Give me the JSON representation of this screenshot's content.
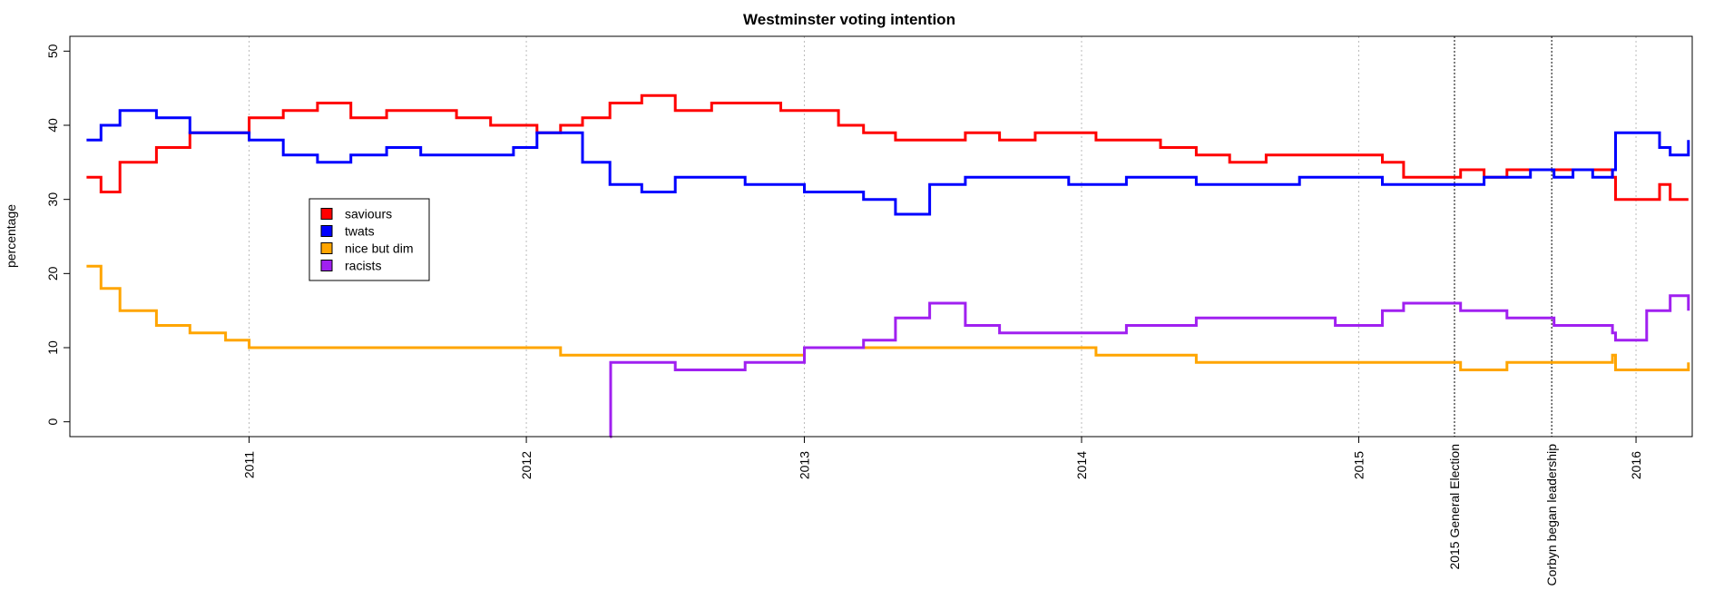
{
  "chart_data": {
    "type": "line",
    "title": "Westminster voting intention",
    "xlabel": "",
    "ylabel": "percentage",
    "x_type": "date",
    "xlim": [
      "2010-05-10",
      "2016-03-15"
    ],
    "ylim": [
      -2,
      52
    ],
    "yticks": [
      0,
      10,
      20,
      30,
      40,
      50
    ],
    "xticks": [
      {
        "date": "2011-01-01",
        "label": "2011"
      },
      {
        "date": "2012-01-01",
        "label": "2012"
      },
      {
        "date": "2013-01-01",
        "label": "2013"
      },
      {
        "date": "2014-01-01",
        "label": "2014"
      },
      {
        "date": "2015-01-01",
        "label": "2015"
      },
      {
        "date": "2016-01-01",
        "label": "2016"
      }
    ],
    "grid": "vertical dotted at year ticks",
    "events": [
      {
        "date": "2015-05-07",
        "label": "2015 General Election"
      },
      {
        "date": "2015-09-12",
        "label": "Corbyn began leadership"
      }
    ],
    "legend": {
      "position": "left",
      "entries": [
        "saviours",
        "twats",
        "nice but dim",
        "racists"
      ]
    },
    "series": [
      {
        "name": "saviours",
        "color": "#ff0000",
        "points": [
          [
            "2010-06-01",
            33
          ],
          [
            "2010-06-20",
            31
          ],
          [
            "2010-07-15",
            35
          ],
          [
            "2010-09-01",
            37
          ],
          [
            "2010-10-15",
            39
          ],
          [
            "2010-12-01",
            39
          ],
          [
            "2011-01-01",
            41
          ],
          [
            "2011-02-15",
            42
          ],
          [
            "2011-04-01",
            43
          ],
          [
            "2011-05-15",
            41
          ],
          [
            "2011-07-01",
            42
          ],
          [
            "2011-08-15",
            42
          ],
          [
            "2011-10-01",
            41
          ],
          [
            "2011-11-15",
            40
          ],
          [
            "2011-12-15",
            40
          ],
          [
            "2012-01-15",
            39
          ],
          [
            "2012-02-15",
            40
          ],
          [
            "2012-03-15",
            41
          ],
          [
            "2012-04-20",
            43
          ],
          [
            "2012-06-01",
            44
          ],
          [
            "2012-07-15",
            42
          ],
          [
            "2012-09-01",
            43
          ],
          [
            "2012-10-15",
            43
          ],
          [
            "2012-12-01",
            42
          ],
          [
            "2013-01-01",
            42
          ],
          [
            "2013-02-15",
            40
          ],
          [
            "2013-03-20",
            39
          ],
          [
            "2013-05-01",
            38
          ],
          [
            "2013-06-15",
            38
          ],
          [
            "2013-08-01",
            39
          ],
          [
            "2013-09-15",
            38
          ],
          [
            "2013-11-01",
            39
          ],
          [
            "2013-12-15",
            39
          ],
          [
            "2014-01-20",
            38
          ],
          [
            "2014-03-01",
            38
          ],
          [
            "2014-04-15",
            37
          ],
          [
            "2014-06-01",
            36
          ],
          [
            "2014-07-15",
            35
          ],
          [
            "2014-09-01",
            36
          ],
          [
            "2014-10-15",
            36
          ],
          [
            "2014-12-01",
            36
          ],
          [
            "2015-01-01",
            36
          ],
          [
            "2015-02-01",
            35
          ],
          [
            "2015-03-01",
            33
          ],
          [
            "2015-04-01",
            33
          ],
          [
            "2015-05-01",
            33
          ],
          [
            "2015-05-15",
            34
          ],
          [
            "2015-06-15",
            33
          ],
          [
            "2015-07-15",
            34
          ],
          [
            "2015-08-15",
            34
          ],
          [
            "2015-09-15",
            34
          ],
          [
            "2015-10-10",
            34
          ],
          [
            "2015-11-05",
            34
          ],
          [
            "2015-12-01",
            33
          ],
          [
            "2015-12-05",
            30
          ],
          [
            "2016-01-15",
            30
          ],
          [
            "2016-02-01",
            32
          ],
          [
            "2016-02-15",
            30
          ],
          [
            "2016-03-10",
            30
          ]
        ]
      },
      {
        "name": "twats",
        "color": "#0000ff",
        "points": [
          [
            "2010-06-01",
            38
          ],
          [
            "2010-06-20",
            40
          ],
          [
            "2010-07-15",
            42
          ],
          [
            "2010-09-01",
            41
          ],
          [
            "2010-10-15",
            39
          ],
          [
            "2010-12-01",
            39
          ],
          [
            "2011-01-01",
            38
          ],
          [
            "2011-02-15",
            36
          ],
          [
            "2011-04-01",
            35
          ],
          [
            "2011-05-15",
            36
          ],
          [
            "2011-07-01",
            37
          ],
          [
            "2011-08-15",
            36
          ],
          [
            "2011-10-01",
            36
          ],
          [
            "2011-11-15",
            36
          ],
          [
            "2011-12-15",
            37
          ],
          [
            "2012-01-15",
            39
          ],
          [
            "2012-02-15",
            39
          ],
          [
            "2012-03-15",
            35
          ],
          [
            "2012-04-20",
            32
          ],
          [
            "2012-06-01",
            31
          ],
          [
            "2012-07-15",
            33
          ],
          [
            "2012-09-01",
            33
          ],
          [
            "2012-10-15",
            32
          ],
          [
            "2012-12-01",
            32
          ],
          [
            "2013-01-01",
            31
          ],
          [
            "2013-02-15",
            31
          ],
          [
            "2013-03-20",
            30
          ],
          [
            "2013-05-01",
            28
          ],
          [
            "2013-06-15",
            32
          ],
          [
            "2013-08-01",
            33
          ],
          [
            "2013-09-15",
            33
          ],
          [
            "2013-11-01",
            33
          ],
          [
            "2013-12-15",
            32
          ],
          [
            "2014-01-20",
            32
          ],
          [
            "2014-03-01",
            33
          ],
          [
            "2014-04-15",
            33
          ],
          [
            "2014-06-01",
            32
          ],
          [
            "2014-07-15",
            32
          ],
          [
            "2014-09-01",
            32
          ],
          [
            "2014-10-15",
            33
          ],
          [
            "2014-12-01",
            33
          ],
          [
            "2015-01-01",
            33
          ],
          [
            "2015-02-01",
            32
          ],
          [
            "2015-03-01",
            32
          ],
          [
            "2015-04-01",
            32
          ],
          [
            "2015-05-01",
            32
          ],
          [
            "2015-05-15",
            32
          ],
          [
            "2015-06-15",
            33
          ],
          [
            "2015-07-15",
            33
          ],
          [
            "2015-08-15",
            34
          ],
          [
            "2015-09-15",
            33
          ],
          [
            "2015-10-10",
            34
          ],
          [
            "2015-11-05",
            33
          ],
          [
            "2015-12-01",
            34
          ],
          [
            "2015-12-05",
            39
          ],
          [
            "2016-01-15",
            39
          ],
          [
            "2016-02-01",
            37
          ],
          [
            "2016-02-15",
            36
          ],
          [
            "2016-03-10",
            38
          ]
        ]
      },
      {
        "name": "nice but dim",
        "color": "#ffa500",
        "points": [
          [
            "2010-06-01",
            21
          ],
          [
            "2010-06-20",
            18
          ],
          [
            "2010-07-15",
            15
          ],
          [
            "2010-09-01",
            13
          ],
          [
            "2010-10-15",
            12
          ],
          [
            "2010-12-01",
            11
          ],
          [
            "2011-01-01",
            10
          ],
          [
            "2011-02-15",
            10
          ],
          [
            "2011-04-01",
            10
          ],
          [
            "2011-05-15",
            10
          ],
          [
            "2011-07-01",
            10
          ],
          [
            "2011-08-15",
            10
          ],
          [
            "2011-10-01",
            10
          ],
          [
            "2011-11-15",
            10
          ],
          [
            "2011-12-15",
            10
          ],
          [
            "2012-01-15",
            10
          ],
          [
            "2012-02-15",
            9
          ],
          [
            "2012-03-15",
            9
          ],
          [
            "2012-04-20",
            9
          ],
          [
            "2012-06-01",
            9
          ],
          [
            "2012-07-15",
            9
          ],
          [
            "2012-09-01",
            9
          ],
          [
            "2012-10-15",
            9
          ],
          [
            "2012-12-01",
            9
          ],
          [
            "2013-01-01",
            10
          ],
          [
            "2013-02-15",
            10
          ],
          [
            "2013-03-20",
            10
          ],
          [
            "2013-05-01",
            10
          ],
          [
            "2013-06-15",
            10
          ],
          [
            "2013-08-01",
            10
          ],
          [
            "2013-09-15",
            10
          ],
          [
            "2013-11-01",
            10
          ],
          [
            "2013-12-15",
            10
          ],
          [
            "2014-01-20",
            9
          ],
          [
            "2014-03-01",
            9
          ],
          [
            "2014-04-15",
            9
          ],
          [
            "2014-06-01",
            8
          ],
          [
            "2014-07-15",
            8
          ],
          [
            "2014-09-01",
            8
          ],
          [
            "2014-10-15",
            8
          ],
          [
            "2014-12-01",
            8
          ],
          [
            "2015-01-01",
            8
          ],
          [
            "2015-02-01",
            8
          ],
          [
            "2015-03-01",
            8
          ],
          [
            "2015-04-01",
            8
          ],
          [
            "2015-05-01",
            8
          ],
          [
            "2015-05-15",
            7
          ],
          [
            "2015-06-15",
            7
          ],
          [
            "2015-07-15",
            8
          ],
          [
            "2015-08-15",
            8
          ],
          [
            "2015-09-15",
            8
          ],
          [
            "2015-10-10",
            8
          ],
          [
            "2015-11-05",
            8
          ],
          [
            "2015-12-01",
            9
          ],
          [
            "2015-12-05",
            7
          ],
          [
            "2016-01-15",
            7
          ],
          [
            "2016-02-01",
            7
          ],
          [
            "2016-02-15",
            7
          ],
          [
            "2016-03-10",
            8
          ]
        ]
      },
      {
        "name": "racists",
        "color": "#a020f0",
        "points": [
          [
            "2012-04-20",
            -2
          ],
          [
            "2012-04-21",
            8
          ],
          [
            "2012-06-01",
            8
          ],
          [
            "2012-07-15",
            7
          ],
          [
            "2012-09-01",
            7
          ],
          [
            "2012-10-15",
            8
          ],
          [
            "2012-12-01",
            8
          ],
          [
            "2013-01-01",
            10
          ],
          [
            "2013-02-15",
            10
          ],
          [
            "2013-03-20",
            11
          ],
          [
            "2013-05-01",
            14
          ],
          [
            "2013-06-15",
            16
          ],
          [
            "2013-08-01",
            13
          ],
          [
            "2013-09-15",
            12
          ],
          [
            "2013-11-01",
            12
          ],
          [
            "2013-12-15",
            12
          ],
          [
            "2014-01-20",
            12
          ],
          [
            "2014-03-01",
            13
          ],
          [
            "2014-04-15",
            13
          ],
          [
            "2014-06-01",
            14
          ],
          [
            "2014-07-15",
            14
          ],
          [
            "2014-09-01",
            14
          ],
          [
            "2014-10-15",
            14
          ],
          [
            "2014-12-01",
            13
          ],
          [
            "2015-01-01",
            13
          ],
          [
            "2015-02-01",
            15
          ],
          [
            "2015-03-01",
            16
          ],
          [
            "2015-04-01",
            16
          ],
          [
            "2015-05-01",
            16
          ],
          [
            "2015-05-15",
            15
          ],
          [
            "2015-06-15",
            15
          ],
          [
            "2015-07-15",
            14
          ],
          [
            "2015-08-15",
            14
          ],
          [
            "2015-09-15",
            13
          ],
          [
            "2015-10-10",
            13
          ],
          [
            "2015-11-05",
            13
          ],
          [
            "2015-12-01",
            12
          ],
          [
            "2015-12-05",
            11
          ],
          [
            "2016-01-15",
            15
          ],
          [
            "2016-02-01",
            15
          ],
          [
            "2016-02-15",
            17
          ],
          [
            "2016-03-10",
            15
          ]
        ]
      }
    ]
  }
}
